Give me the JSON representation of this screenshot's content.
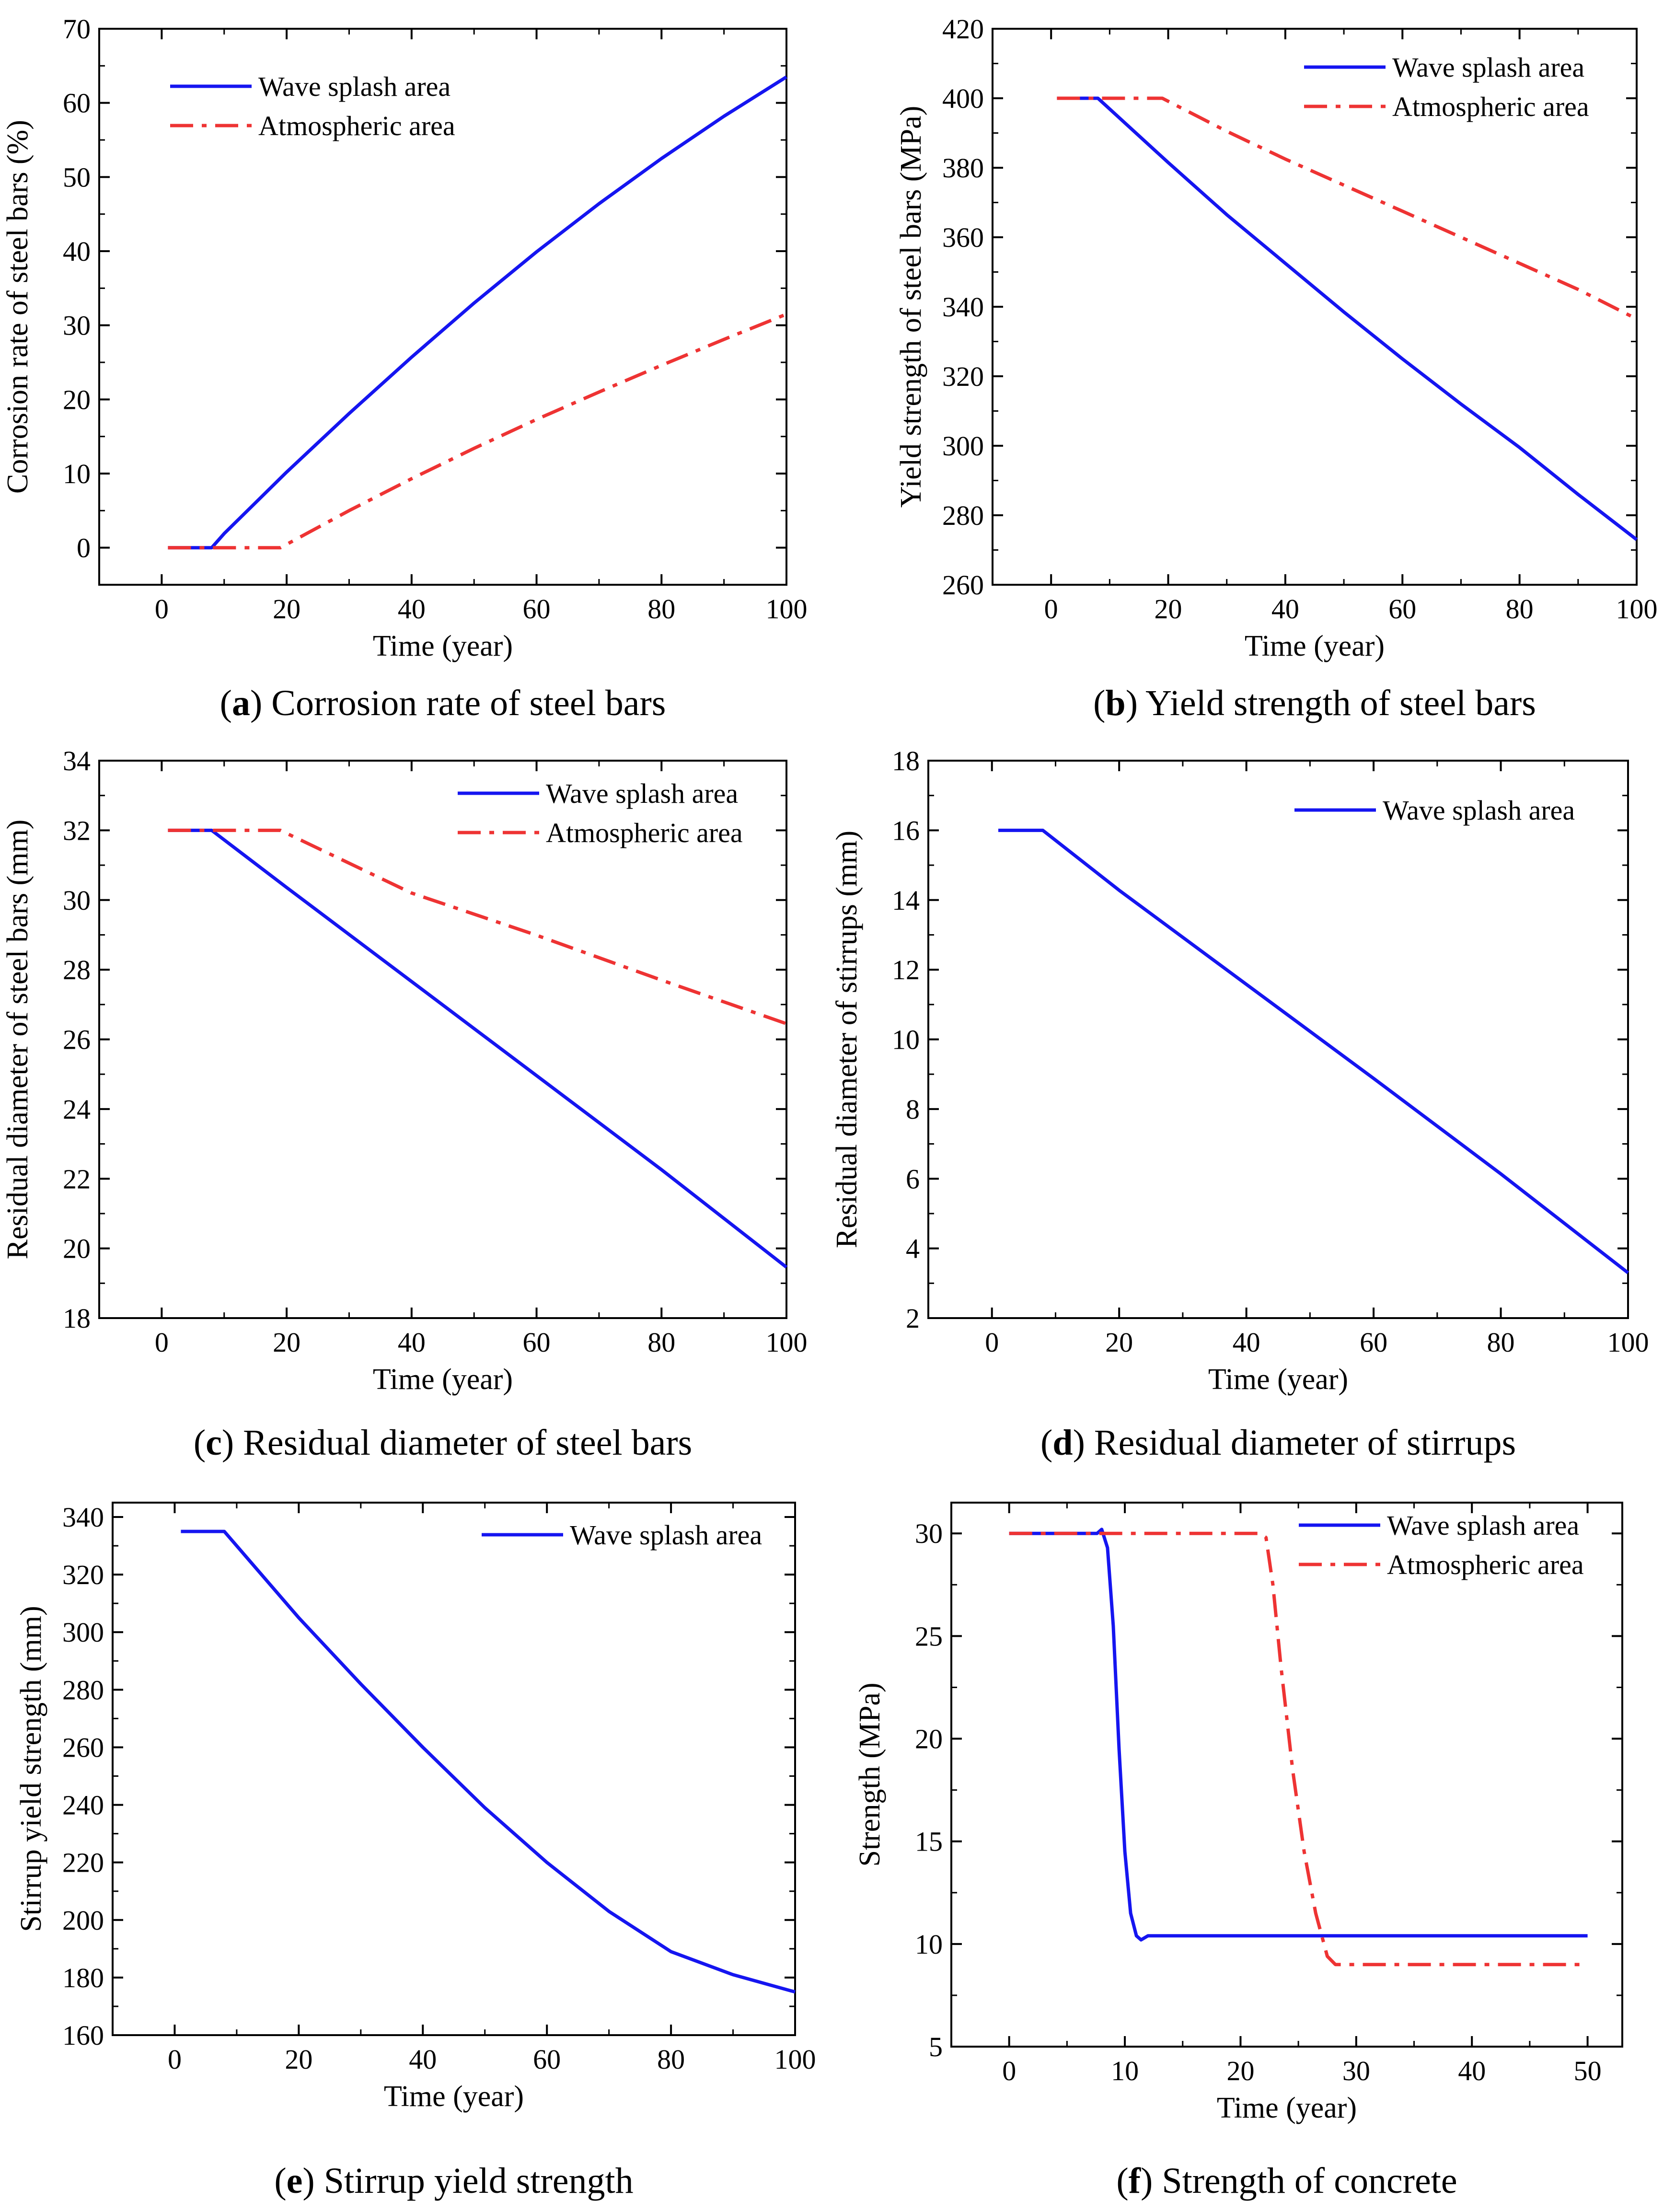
{
  "colors": {
    "wave": "#1515f0",
    "atmos": "#ee3333",
    "axis": "#000000"
  },
  "chart_data": [
    {
      "id": "a",
      "type": "line",
      "caption_letter": "a",
      "caption_text": " Corrosion rate of steel bars",
      "xlabel": "Time (year)",
      "ylabel": "Corrosion rate of steel bars (%)",
      "xlim": [
        -10,
        100
      ],
      "ylim": [
        -5,
        70
      ],
      "xticks": [
        0,
        20,
        40,
        60,
        80,
        100
      ],
      "yticks": [
        0,
        10,
        20,
        30,
        40,
        50,
        60,
        70
      ],
      "xminor": [
        10,
        30,
        50,
        70,
        90
      ],
      "yminor": [
        5,
        15,
        25,
        35,
        45,
        55,
        65
      ],
      "legend_position": "top-left",
      "series": [
        {
          "name": "Wave splash area",
          "style": "solid",
          "color": "#1515f0",
          "x": [
            1,
            8,
            10,
            20,
            30,
            40,
            50,
            60,
            70,
            80,
            90,
            100
          ],
          "y": [
            0,
            0,
            1.9,
            10.2,
            18.1,
            25.7,
            33.0,
            39.9,
            46.4,
            52.5,
            58.2,
            63.5
          ]
        },
        {
          "name": "Atmospheric area",
          "style": "dashdot",
          "color": "#ee3333",
          "x": [
            1,
            19,
            30,
            40,
            50,
            60,
            70,
            80,
            90,
            100
          ],
          "y": [
            0,
            0,
            5.0,
            9.3,
            13.4,
            17.3,
            21.0,
            24.6,
            28.1,
            31.5
          ]
        }
      ]
    },
    {
      "id": "b",
      "type": "line",
      "caption_letter": "b",
      "caption_text": " Yield strength of steel bars",
      "xlabel": "Time (year)",
      "ylabel": "Yield strength of steel bars (MPa)",
      "xlim": [
        -10,
        100
      ],
      "ylim": [
        260,
        420
      ],
      "xticks": [
        0,
        20,
        40,
        60,
        80,
        100
      ],
      "yticks": [
        260,
        280,
        300,
        320,
        340,
        360,
        380,
        400,
        420
      ],
      "xminor": [
        10,
        30,
        50,
        70,
        90
      ],
      "yminor": [
        270,
        290,
        310,
        330,
        350,
        370,
        390,
        410
      ],
      "legend_position": "top-right",
      "series": [
        {
          "name": "Wave splash area",
          "style": "solid",
          "color": "#1515f0",
          "x": [
            1,
            8,
            20,
            30,
            40,
            50,
            60,
            70,
            80,
            90,
            100
          ],
          "y": [
            400,
            400,
            381.5,
            366.5,
            352.5,
            338.5,
            325,
            312,
            299.5,
            286,
            273
          ]
        },
        {
          "name": "Atmospheric area",
          "style": "dashdot",
          "color": "#ee3333",
          "x": [
            1,
            19,
            30,
            40,
            50,
            60,
            70,
            80,
            90,
            100
          ],
          "y": [
            400,
            400,
            390.5,
            382.5,
            375,
            367.5,
            360,
            352.5,
            345,
            336.5
          ]
        }
      ]
    },
    {
      "id": "c",
      "type": "line",
      "caption_letter": "c",
      "caption_text": " Residual diameter of steel bars",
      "xlabel": "Time (year)",
      "ylabel": "Residual diameter of steel bars (mm)",
      "xlim": [
        -10,
        100
      ],
      "ylim": [
        18,
        34
      ],
      "xticks": [
        0,
        20,
        40,
        60,
        80,
        100
      ],
      "yticks": [
        18,
        20,
        22,
        24,
        26,
        28,
        30,
        32,
        34
      ],
      "xminor": [
        10,
        30,
        50,
        70,
        90
      ],
      "yminor": [
        19,
        21,
        23,
        25,
        27,
        29,
        31,
        33
      ],
      "legend_position": "top-right",
      "series": [
        {
          "name": "Wave splash area",
          "style": "solid",
          "color": "#1515f0",
          "x": [
            1,
            8,
            20,
            40,
            60,
            80,
            100
          ],
          "y": [
            32,
            32,
            30.36,
            27.66,
            24.96,
            22.26,
            19.46
          ]
        },
        {
          "name": "Atmospheric area",
          "style": "dashdot",
          "color": "#ee3333",
          "x": [
            1,
            19,
            40,
            60,
            80,
            100
          ],
          "y": [
            32,
            32,
            30.2,
            28.99,
            27.7,
            26.45
          ]
        }
      ]
    },
    {
      "id": "d",
      "type": "line",
      "caption_letter": "d",
      "caption_text": " Residual diameter of stirrups",
      "xlabel": "Time (year)",
      "ylabel": "Residual diameter of stirrups (mm)",
      "xlim": [
        -10,
        100
      ],
      "ylim": [
        2,
        18
      ],
      "xticks": [
        0,
        20,
        40,
        60,
        80,
        100
      ],
      "yticks": [
        2,
        4,
        6,
        8,
        10,
        12,
        14,
        16,
        18
      ],
      "xminor": [
        10,
        30,
        50,
        70,
        90
      ],
      "yminor": [
        3,
        5,
        7,
        9,
        11,
        13,
        15,
        17
      ],
      "legend_position": "top-right",
      "series": [
        {
          "name": "Wave splash area",
          "style": "solid",
          "color": "#1515f0",
          "x": [
            1,
            8,
            20,
            40,
            60,
            80,
            100
          ],
          "y": [
            16,
            16,
            14.28,
            11.58,
            8.88,
            6.14,
            3.3
          ]
        }
      ]
    },
    {
      "id": "e",
      "type": "line",
      "caption_letter": "e",
      "caption_text": " Stirrup yield strength",
      "xlabel": "Time (year)",
      "ylabel": "Stirrup yield strength (mm)",
      "xlim": [
        -10,
        100
      ],
      "ylim": [
        160,
        345
      ],
      "xticks": [
        0,
        20,
        40,
        60,
        80,
        100
      ],
      "yticks": [
        160,
        180,
        200,
        220,
        240,
        260,
        280,
        300,
        320,
        340
      ],
      "xminor": [
        10,
        30,
        50,
        70,
        90
      ],
      "yminor": [
        170,
        190,
        210,
        230,
        250,
        270,
        290,
        310,
        330
      ],
      "legend_position": "top-right",
      "series": [
        {
          "name": "Wave splash area",
          "style": "solid",
          "color": "#1515f0",
          "x": [
            1,
            8,
            20,
            30,
            40,
            50,
            60,
            70,
            80,
            90,
            100
          ],
          "y": [
            335,
            335,
            305,
            282,
            260,
            239,
            220,
            203,
            189,
            181,
            175
          ]
        }
      ]
    },
    {
      "id": "f",
      "type": "line",
      "caption_letter": "f",
      "caption_text": " Strength of concrete",
      "xlabel": "Time (year)",
      "ylabel": "Strength (MPa)",
      "xlim": [
        -5,
        53
      ],
      "ylim": [
        5,
        31.5
      ],
      "xticks": [
        0,
        10,
        20,
        30,
        40,
        50
      ],
      "yticks": [
        5,
        10,
        15,
        20,
        25,
        30
      ],
      "xminor": [
        5,
        15,
        25,
        35,
        45
      ],
      "yminor": [
        7.5,
        12.5,
        17.5,
        22.5,
        27.5
      ],
      "legend_position": "top-right",
      "series": [
        {
          "name": "Wave splash area",
          "style": "solid",
          "color": "#1515f0",
          "x": [
            0,
            7.6,
            8.0,
            8.5,
            9.0,
            9.5,
            10.0,
            10.5,
            11.0,
            11.4,
            12.0,
            13.0,
            50
          ],
          "y": [
            30,
            30,
            30.2,
            29.3,
            25.5,
            19.5,
            14.5,
            11.5,
            10.4,
            10.2,
            10.4,
            10.4,
            10.4
          ]
        },
        {
          "name": "Atmospheric area",
          "style": "dashdot",
          "color": "#ee3333",
          "x": [
            0,
            21.7,
            22.2,
            22.8,
            23.5,
            24.5,
            25.5,
            26.5,
            27.5,
            28.2,
            29.0,
            50
          ],
          "y": [
            30,
            30,
            29.8,
            27.5,
            23.5,
            18.5,
            14.5,
            11.5,
            9.4,
            9.0,
            9.0,
            9.0
          ]
        }
      ]
    }
  ]
}
